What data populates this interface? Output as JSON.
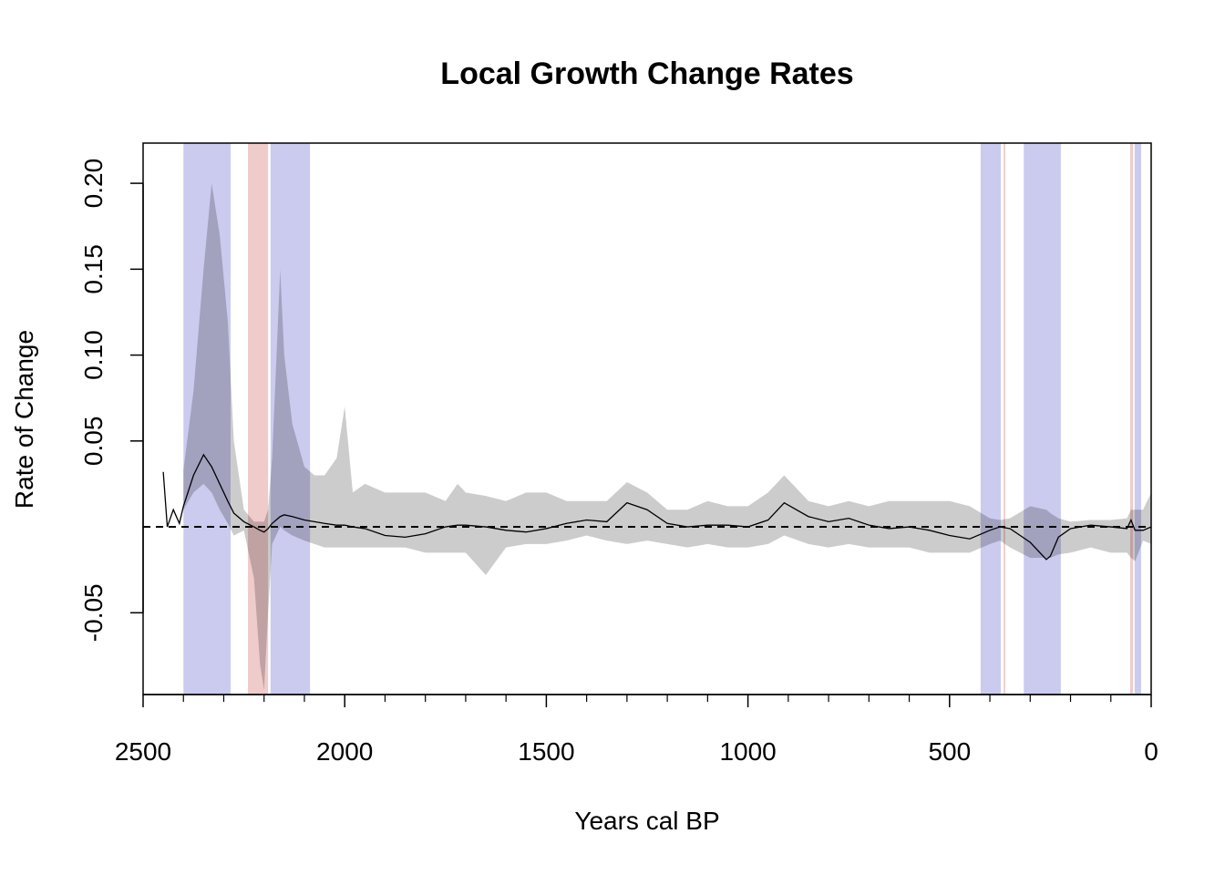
{
  "chart_data": {
    "type": "line",
    "title": "Local Growth Change Rates",
    "x_label": "Years cal BP",
    "y_label": "Rate of Change",
    "xlim": [
      2500,
      0
    ],
    "ylim": [
      -0.0976,
      0.2234
    ],
    "xticks": [
      2500,
      2000,
      1500,
      1000,
      500,
      0
    ],
    "xminorticks": [
      2400,
      2300,
      2200,
      2100,
      1900,
      1800,
      1700,
      1600,
      1400,
      1300,
      1200,
      1100,
      900,
      800,
      700,
      600,
      400,
      300,
      200,
      100
    ],
    "yticks": [
      -0.05,
      0.05,
      {
        "value": 0.1,
        "label": "0.10"
      },
      0.15,
      {
        "value": 0.2,
        "label": "0.20"
      }
    ],
    "reference_line": 0,
    "highlights": [
      {
        "start": 2400,
        "end": 2283,
        "color": "#cbcbef"
      },
      {
        "start": 2240,
        "end": 2190,
        "color": "#f0cbcb"
      },
      {
        "start": 2184,
        "end": 2086,
        "color": "#cbcbef"
      },
      {
        "start": 423,
        "end": 373,
        "color": "#cbcbef"
      },
      {
        "start": 366,
        "end": 362,
        "color": "#f0cbcb"
      },
      {
        "start": 316,
        "end": 224,
        "color": "#cbcbef"
      },
      {
        "start": 52,
        "end": 45,
        "color": "#f0cbcb"
      },
      {
        "start": 41,
        "end": 25,
        "color": "#cbcbef"
      }
    ],
    "x": [
      2450,
      2440,
      2425,
      2410,
      2400,
      2375,
      2350,
      2330,
      2310,
      2290,
      2275,
      2250,
      2225,
      2210,
      2200,
      2190,
      2180,
      2160,
      2150,
      2130,
      2100,
      2075,
      2050,
      2020,
      2000,
      1980,
      1950,
      1900,
      1850,
      1800,
      1750,
      1720,
      1700,
      1650,
      1600,
      1550,
      1500,
      1450,
      1400,
      1350,
      1300,
      1250,
      1200,
      1150,
      1100,
      1050,
      1000,
      950,
      910,
      850,
      800,
      750,
      700,
      650,
      600,
      550,
      500,
      450,
      400,
      375,
      350,
      300,
      260,
      250,
      230,
      200,
      150,
      100,
      60,
      50,
      40,
      20,
      0
    ],
    "band": {
      "color": "#cccccc",
      "upper": [
        null,
        null,
        null,
        null,
        0.033,
        0.079,
        0.15,
        0.2,
        0.17,
        0.12,
        0.05,
        0.01,
        0.003,
        0.003,
        0.003,
        0.01,
        0.04,
        0.15,
        0.1,
        0.06,
        0.035,
        0.03,
        0.03,
        0.04,
        0.07,
        0.02,
        0.025,
        0.02,
        0.02,
        0.02,
        0.015,
        0.025,
        0.02,
        0.018,
        0.015,
        0.02,
        0.02,
        0.015,
        0.015,
        0.015,
        0.026,
        0.02,
        0.01,
        0.01,
        0.015,
        0.012,
        0.012,
        0.02,
        0.03,
        0.015,
        0.012,
        0.015,
        0.012,
        0.015,
        0.015,
        0.015,
        0.015,
        0.012,
        0.005,
        0.004,
        0.005,
        0.012,
        0.01,
        0.008,
        0.005,
        0.003,
        0.004,
        0.004,
        0.005,
        0.01,
        0.01,
        0.01,
        0.02
      ],
      "lower": [
        null,
        null,
        null,
        null,
        0.01,
        0.02,
        0.025,
        0.02,
        0.01,
        0.002,
        -0.005,
        -0.002,
        -0.03,
        -0.08,
        -0.095,
        -0.05,
        -0.01,
        0.0,
        -0.002,
        -0.005,
        -0.008,
        -0.01,
        -0.012,
        -0.012,
        -0.012,
        -0.012,
        -0.012,
        -0.012,
        -0.012,
        -0.015,
        -0.015,
        -0.015,
        -0.015,
        -0.028,
        -0.012,
        -0.01,
        -0.01,
        -0.008,
        -0.005,
        -0.008,
        -0.01,
        -0.008,
        -0.01,
        -0.012,
        -0.01,
        -0.012,
        -0.012,
        -0.01,
        -0.005,
        -0.01,
        -0.012,
        -0.01,
        -0.012,
        -0.012,
        -0.012,
        -0.015,
        -0.015,
        -0.015,
        -0.01,
        -0.008,
        -0.012,
        -0.018,
        -0.018,
        -0.018,
        -0.016,
        -0.015,
        -0.012,
        -0.015,
        -0.015,
        -0.018,
        -0.02,
        -0.008,
        -0.01
      ]
    },
    "series": [
      {
        "color": "#000000",
        "values": [
          0.032,
          0.0,
          0.01,
          0.002,
          0.012,
          0.03,
          0.042,
          0.035,
          0.025,
          0.015,
          0.008,
          0.003,
          0.0,
          -0.002,
          -0.003,
          -0.001,
          0.002,
          0.006,
          0.007,
          0.006,
          0.004,
          0.003,
          0.002,
          0.001,
          0.001,
          0.0,
          -0.001,
          -0.005,
          -0.006,
          -0.004,
          0.0,
          0.001,
          0.001,
          0.0,
          -0.002,
          -0.003,
          -0.001,
          0.002,
          0.004,
          0.003,
          0.014,
          0.01,
          0.002,
          0.0,
          0.001,
          0.001,
          0.0,
          0.004,
          0.014,
          0.006,
          0.003,
          0.005,
          0.001,
          -0.001,
          0.0,
          -0.002,
          -0.005,
          -0.007,
          -0.002,
          0.0,
          -0.001,
          -0.009,
          -0.019,
          -0.017,
          -0.006,
          -0.001,
          0.001,
          0.0,
          -0.001,
          0.004,
          -0.002,
          -0.002,
          0.0
        ]
      }
    ]
  }
}
